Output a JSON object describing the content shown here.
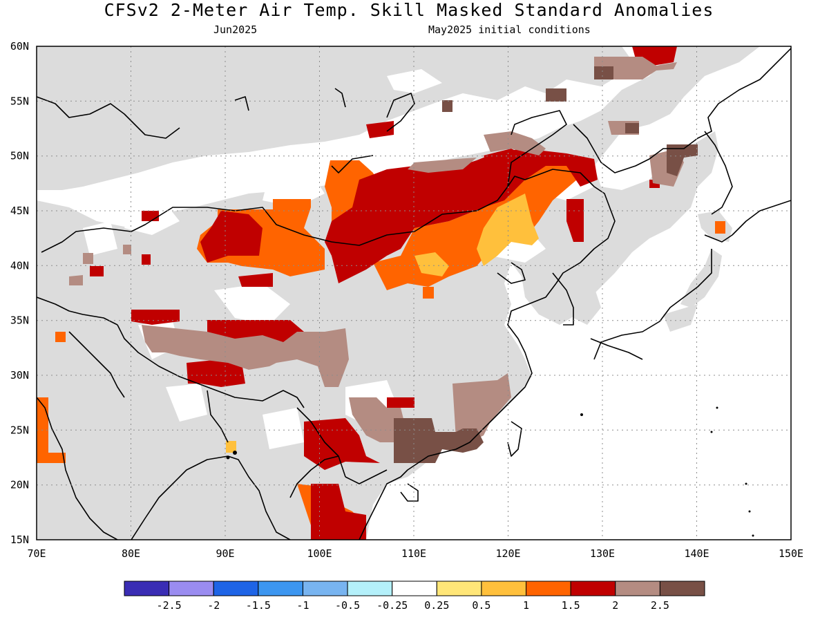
{
  "title": "CFSv2 2-Meter Air Temp. Skill Masked Standard Anomalies",
  "subtitle_left": "Jun2025",
  "subtitle_right": "May2025 initial conditions",
  "map": {
    "lon_range": [
      70,
      150
    ],
    "lat_range": [
      15,
      60
    ],
    "lon_ticks": [
      "70E",
      "80E",
      "90E",
      "100E",
      "110E",
      "120E",
      "130E",
      "140E",
      "150E"
    ],
    "lat_ticks": [
      "15N",
      "20N",
      "25N",
      "30N",
      "35N",
      "40N",
      "45N",
      "50N",
      "55N",
      "60N"
    ],
    "land_mask_color": "#dcdcdc",
    "ocean_color": "#ffffff",
    "grid": "dotted"
  },
  "colorbar": {
    "colors": [
      "#3a2db4",
      "#9a8cf0",
      "#1e64e6",
      "#3c96f0",
      "#78b4f0",
      "#b4f0fa",
      "#ffffff",
      "#ffe678",
      "#ffc03c",
      "#ff6400",
      "#c00000",
      "#b48c82",
      "#785046"
    ],
    "labels": [
      "-2.5",
      "-2",
      "-1.5",
      "-1",
      "-0.5",
      "-0.25",
      "0.25",
      "0.5",
      "1",
      "1.5",
      "2",
      "2.5"
    ]
  }
}
